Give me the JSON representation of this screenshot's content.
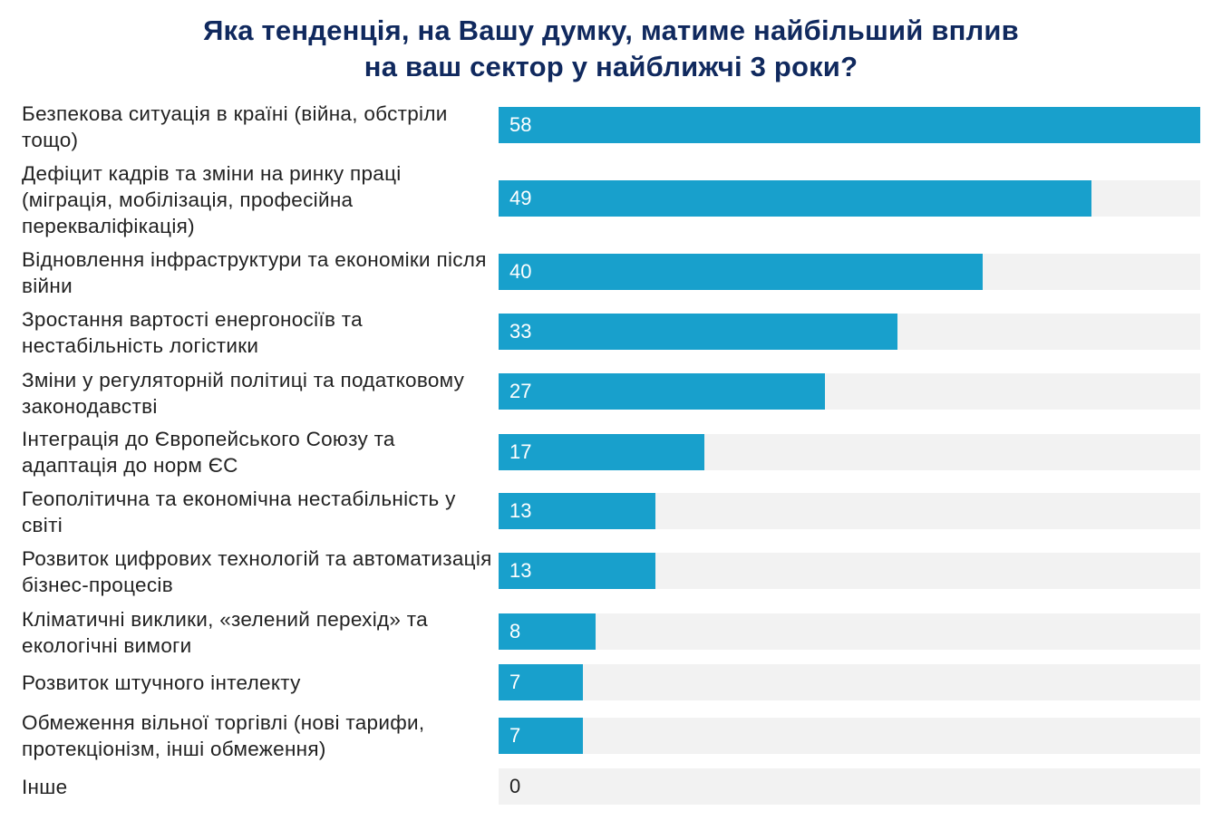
{
  "chart_data": {
    "type": "bar",
    "orientation": "horizontal",
    "title": "Яка тенденція, на Вашу думку, матиме найбільший вплив на ваш сектор у найближчі 3 роки?",
    "title_lines": [
      "Яка тенденція, на Вашу думку, матиме найбільший вплив",
      "на ваш сектор у найближчі 3 роки?"
    ],
    "categories": [
      "Безпекова ситуація в країні (війна, обстріли тощо)",
      "Дефіцит кадрів та зміни на ринку праці (міграція, мобілізація, професійна перекваліфікація)",
      "Відновлення інфраструктури та економіки після війни",
      "Зростання вартості енергоносіїв та нестабільність логістики",
      "Зміни у регуляторній політиці та податковому законодавстві",
      "Інтеграція до Європейського Союзу та адаптація до норм ЄС",
      "Геополітична та економічна нестабільність у світі",
      "Розвиток цифрових технологій та автоматизація бізнес-процесів",
      "Кліматичні виклики, «зелений перехід» та екологічні вимоги",
      "Розвиток штучного інтелекту",
      "Обмеження вільної торгівлі (нові тарифи, протекціонізм, інші обмеження)",
      "Інше"
    ],
    "values": [
      58,
      49,
      40,
      33,
      27,
      17,
      13,
      13,
      8,
      7,
      7,
      0
    ],
    "xlim": [
      0,
      58
    ],
    "xlabel": "",
    "ylabel": "",
    "grid": false,
    "colors": {
      "bar": "#18a0cc",
      "track": "#f2f2f2",
      "title": "#10295e"
    }
  }
}
